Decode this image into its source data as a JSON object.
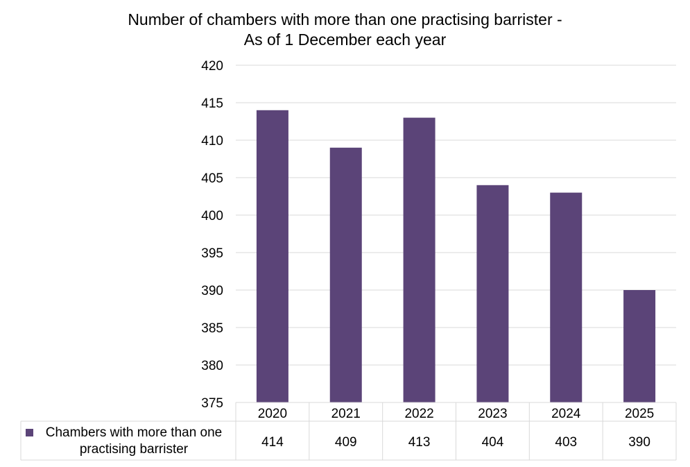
{
  "chart_data": {
    "type": "bar",
    "title_line1": "Number of chambers with more than one practising barrister -",
    "title_line2": "As of 1 December each year",
    "categories": [
      "2020",
      "2021",
      "2022",
      "2023",
      "2024",
      "2025"
    ],
    "series": [
      {
        "name": "Chambers with more than one practising barrister",
        "values": [
          414,
          409,
          413,
          404,
          403,
          390
        ],
        "color": "#5b4478"
      }
    ],
    "ylim": [
      375,
      420
    ],
    "yticks": [
      "375",
      "380",
      "385",
      "390",
      "395",
      "400",
      "405",
      "410",
      "415",
      "420"
    ],
    "grid": true,
    "data_table": true,
    "table_values": [
      "414",
      "409",
      "413",
      "404",
      "403",
      "390"
    ],
    "legend_line1": "Chambers with more than one",
    "legend_line2": "practising barrister",
    "gridline_color": "#d9d9d9"
  }
}
